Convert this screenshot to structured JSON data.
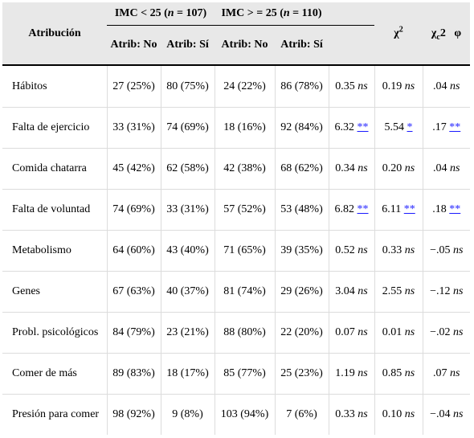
{
  "header": {
    "attribution": "Atribución",
    "group1": "IMC < 25 (n = 107)",
    "group2": "IMC > = 25 (n = 110)",
    "chi": "χ2",
    "chic": "χc2",
    "phi": "φ",
    "sub_no": "Atrib: No",
    "sub_yes": "Atrib: Sí"
  },
  "rows": [
    {
      "name": "Hábitos",
      "g1no": "27 (25%)",
      "g1yes": "80 (75%)",
      "g2no": "24 (22%)",
      "g2yes": "86 (78%)",
      "chi_v": "0.35",
      "chi_s": "ns",
      "chic_v": "0.19",
      "chic_s": "ns",
      "phi_v": ".04",
      "phi_s": "ns"
    },
    {
      "name": "Falta de ejercicio",
      "g1no": "33 (31%)",
      "g1yes": "74 (69%)",
      "g2no": "18 (16%)",
      "g2yes": "92 (84%)",
      "chi_v": "6.32",
      "chi_s": "**",
      "chic_v": "5.54",
      "chic_s": "*",
      "phi_v": ".17",
      "phi_s": "**"
    },
    {
      "name": "Comida chatarra",
      "g1no": "45 (42%)",
      "g1yes": "62 (58%)",
      "g2no": "42 (38%)",
      "g2yes": "68 (62%)",
      "chi_v": "0.34",
      "chi_s": "ns",
      "chic_v": "0.20",
      "chic_s": "ns",
      "phi_v": ".04",
      "phi_s": "ns"
    },
    {
      "name": "Falta de voluntad",
      "g1no": "74 (69%)",
      "g1yes": "33 (31%)",
      "g2no": "57 (52%)",
      "g2yes": "53 (48%)",
      "chi_v": "6.82",
      "chi_s": "**",
      "chic_v": "6.11",
      "chic_s": "**",
      "phi_v": ".18",
      "phi_s": "**"
    },
    {
      "name": "Metabolismo",
      "g1no": "64 (60%)",
      "g1yes": "43 (40%)",
      "g2no": "71 (65%)",
      "g2yes": "39 (35%)",
      "chi_v": "0.52",
      "chi_s": "ns",
      "chic_v": "0.33",
      "chic_s": "ns",
      "phi_v": "−.05",
      "phi_s": "ns"
    },
    {
      "name": "Genes",
      "g1no": "67 (63%)",
      "g1yes": "40 (37%)",
      "g2no": "81 (74%)",
      "g2yes": "29 (26%)",
      "chi_v": "3.04",
      "chi_s": "ns",
      "chic_v": "2.55",
      "chic_s": "ns",
      "phi_v": "−.12",
      "phi_s": "ns"
    },
    {
      "name": "Probl. psicológicos",
      "g1no": "84 (79%)",
      "g1yes": "23 (21%)",
      "g2no": "88 (80%)",
      "g2yes": "22 (20%)",
      "chi_v": "0.07",
      "chi_s": "ns",
      "chic_v": "0.01",
      "chic_s": "ns",
      "phi_v": "−.02",
      "phi_s": "ns"
    },
    {
      "name": "Comer de más",
      "g1no": "89 (83%)",
      "g1yes": "18 (17%)",
      "g2no": "85 (77%)",
      "g2yes": "25 (23%)",
      "chi_v": "1.19",
      "chi_s": "ns",
      "chic_v": "0.85",
      "chic_s": "ns",
      "phi_v": ".07",
      "phi_s": "ns"
    },
    {
      "name": "Presión para comer",
      "g1no": "98 (92%)",
      "g1yes": "9 (8%)",
      "g2no": "103 (94%)",
      "g2yes": "7 (6%)",
      "chi_v": "0.33",
      "chi_s": "ns",
      "chic_v": "0.10",
      "chic_s": "ns",
      "phi_v": "−.04",
      "phi_s": "ns"
    }
  ]
}
